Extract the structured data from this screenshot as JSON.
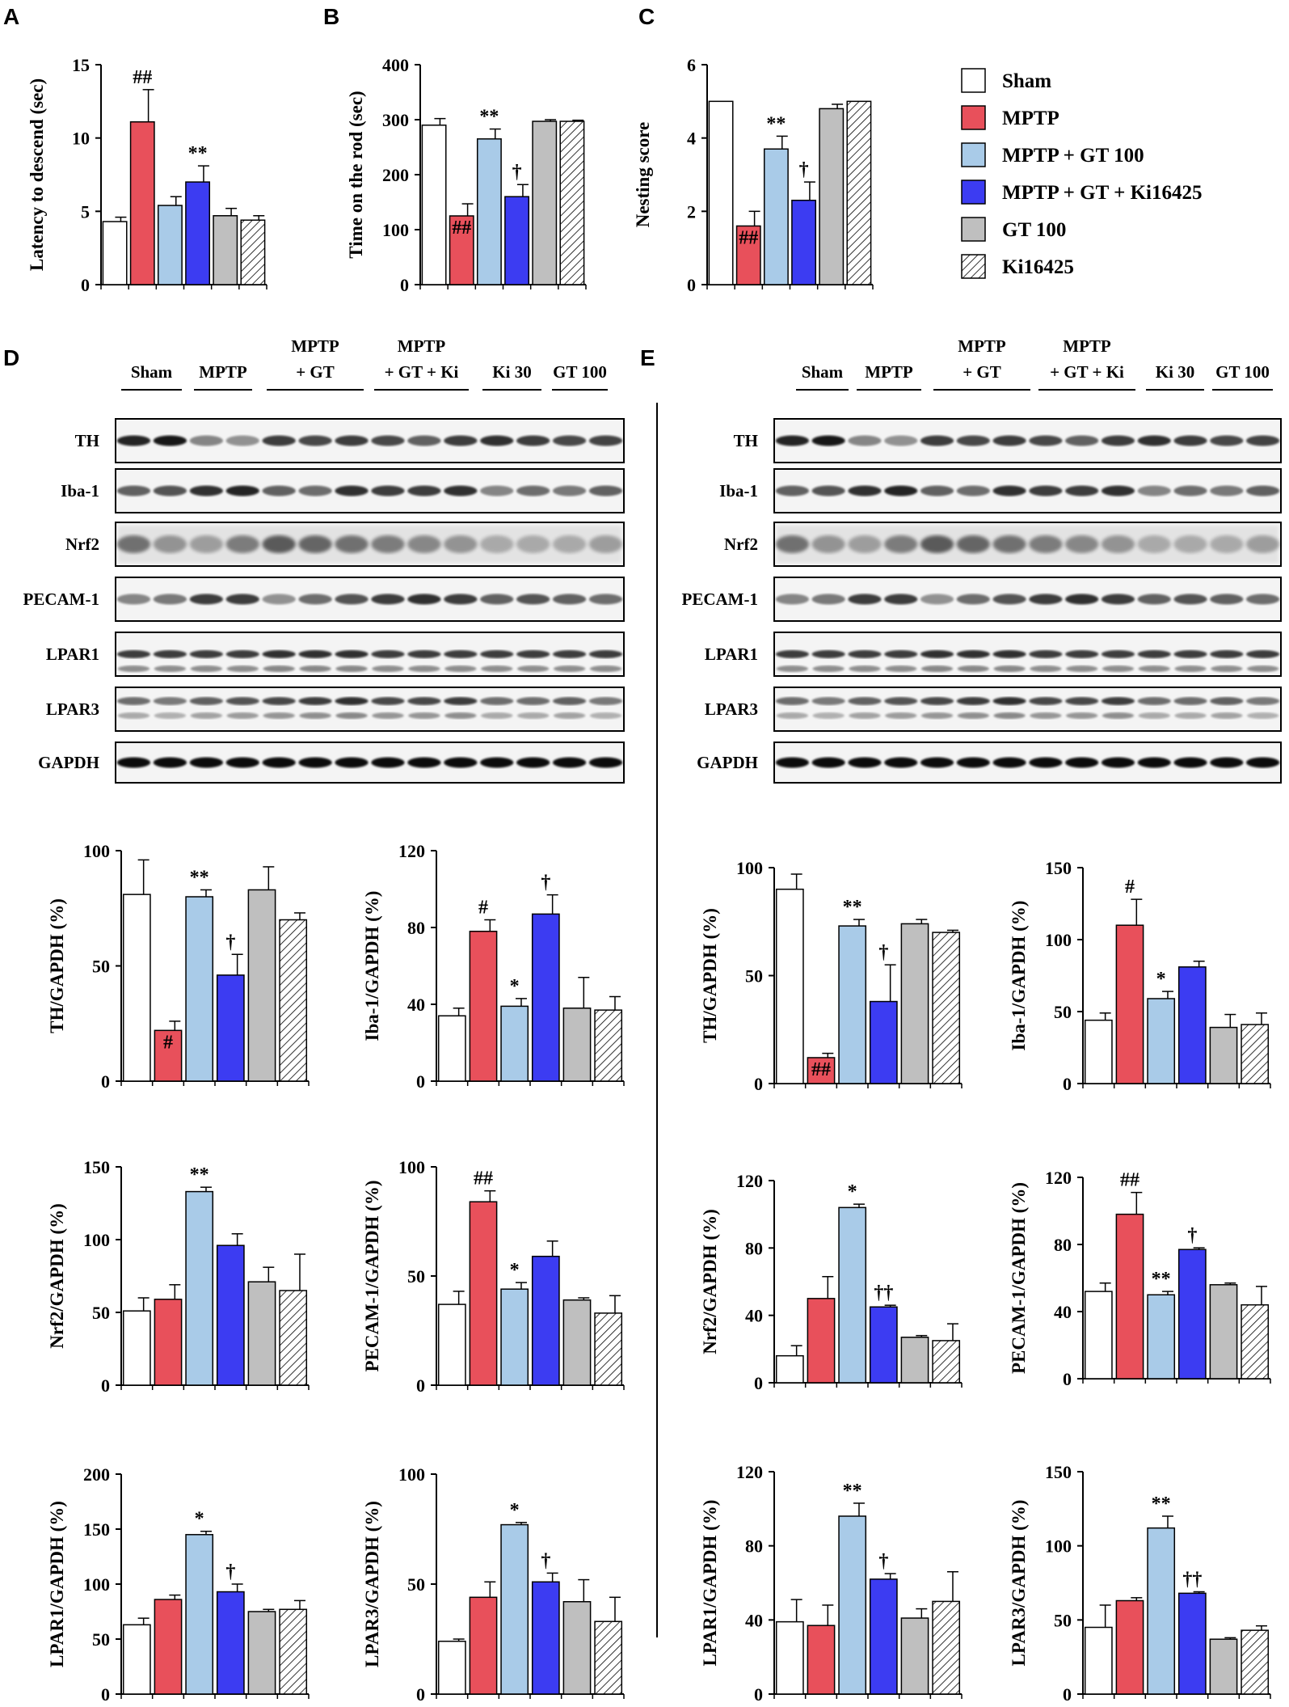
{
  "panel_labels": [
    "A",
    "B",
    "C",
    "D",
    "E"
  ],
  "colors": {
    "sham": "#ffffff",
    "mptp": "#e8505b",
    "mptp_gt100": "#a9cbe8",
    "mptp_gt_ki": "#3c3cf2",
    "gt100": "#bfbfbf",
    "ki16425": "hatched"
  },
  "legend": [
    {
      "label": "Sham",
      "color": "#ffffff",
      "hatch": false
    },
    {
      "label": "MPTP",
      "color": "#e8505b",
      "hatch": false
    },
    {
      "label": "MPTP + GT 100",
      "color": "#a9cbe8",
      "hatch": false
    },
    {
      "label": "MPTP + GT + Ki16425",
      "color": "#3c3cf2",
      "hatch": false
    },
    {
      "label": "GT 100",
      "color": "#bfbfbf",
      "hatch": false
    },
    {
      "label": "Ki16425",
      "color": "#ffffff",
      "hatch": true
    }
  ],
  "blots": {
    "D": {
      "groups": [
        {
          "l1": "Sham",
          "l2": ""
        },
        {
          "l1": "MPTP",
          "l2": ""
        },
        {
          "l1": "MPTP",
          "l2": "+ GT"
        },
        {
          "l1": "MPTP",
          "l2": "+ GT + Ki"
        },
        {
          "l1": "Ki 30",
          "l2": ""
        },
        {
          "l1": "GT 100",
          "l2": ""
        }
      ],
      "rows": [
        "TH",
        "Iba-1",
        "Nrf2",
        "PECAM-1",
        "LPAR1",
        "LPAR3",
        "GAPDH"
      ]
    },
    "E": {
      "groups": [
        {
          "l1": "Sham",
          "l2": ""
        },
        {
          "l1": "MPTP",
          "l2": ""
        },
        {
          "l1": "MPTP",
          "l2": "+ GT"
        },
        {
          "l1": "MPTP",
          "l2": "+ GT + Ki"
        },
        {
          "l1": "Ki 30",
          "l2": ""
        },
        {
          "l1": "GT 100",
          "l2": ""
        }
      ],
      "rows": [
        "TH",
        "Iba-1",
        "Nrf2",
        "PECAM-1",
        "LPAR1",
        "LPAR3",
        "GAPDH"
      ]
    }
  },
  "chart_data": [
    {
      "id": "A",
      "type": "bar",
      "ylabel": "Latency to descend (sec)",
      "ylim": [
        0,
        15
      ],
      "yticks": [
        0,
        5,
        10,
        15
      ],
      "categories": [
        "Sham",
        "MPTP",
        "MPTP + GT 100",
        "MPTP + GT + Ki16425",
        "GT 100",
        "Ki16425"
      ],
      "values": [
        4.3,
        11.1,
        5.4,
        7.0,
        4.7,
        4.4
      ],
      "errors": [
        0.3,
        2.2,
        0.6,
        1.1,
        0.5,
        0.3
      ],
      "annotations": [
        "",
        "##",
        "",
        "**",
        "",
        ""
      ]
    },
    {
      "id": "B",
      "type": "bar",
      "ylabel": "Time on the rod (sec)",
      "ylim": [
        0,
        400
      ],
      "yticks": [
        0,
        100,
        200,
        300,
        400
      ],
      "categories": [
        "Sham",
        "MPTP",
        "MPTP + GT 100",
        "MPTP + GT + Ki16425",
        "GT 100",
        "Ki16425"
      ],
      "values": [
        290,
        125,
        265,
        160,
        297,
        297
      ],
      "errors": [
        12,
        22,
        18,
        22,
        3,
        2
      ],
      "annotations": [
        "",
        "##",
        "**",
        "†",
        "",
        ""
      ]
    },
    {
      "id": "C",
      "type": "bar",
      "ylabel": "Nesting score",
      "ylim": [
        0,
        6
      ],
      "yticks": [
        0,
        2,
        4,
        6
      ],
      "categories": [
        "Sham",
        "MPTP",
        "MPTP + GT 100",
        "MPTP + GT + Ki16425",
        "GT 100",
        "Ki16425"
      ],
      "values": [
        5.0,
        1.6,
        3.7,
        2.3,
        4.8,
        5.0
      ],
      "errors": [
        0,
        0.4,
        0.35,
        0.5,
        0.12,
        0
      ],
      "annotations": [
        "",
        "##",
        "**",
        "†",
        "",
        ""
      ]
    },
    {
      "id": "D-TH",
      "type": "bar",
      "ylabel": "TH/GAPDH (%)",
      "ylim": [
        0,
        100
      ],
      "yticks": [
        0,
        50,
        100
      ],
      "categories": [
        "Sham",
        "MPTP",
        "MPTP + GT 100",
        "MPTP + GT + Ki16425",
        "GT 100",
        "Ki16425"
      ],
      "values": [
        81,
        22,
        80,
        46,
        83,
        70
      ],
      "errors": [
        15,
        4,
        3,
        9,
        10,
        3
      ],
      "annotations": [
        "",
        "#",
        "**",
        "†",
        "",
        ""
      ]
    },
    {
      "id": "D-Iba1",
      "type": "bar",
      "ylabel": "Iba-1/GAPDH (%)",
      "ylim": [
        0,
        120
      ],
      "yticks": [
        0,
        40,
        80,
        120
      ],
      "categories": [
        "Sham",
        "MPTP",
        "MPTP + GT 100",
        "MPTP + GT + Ki16425",
        "GT 100",
        "Ki16425"
      ],
      "values": [
        34,
        78,
        39,
        87,
        38,
        37
      ],
      "errors": [
        4,
        6,
        4,
        10,
        16,
        7
      ],
      "annotations": [
        "",
        "#",
        "*",
        "†",
        "",
        ""
      ]
    },
    {
      "id": "D-Nrf2",
      "type": "bar",
      "ylabel": "Nrf2/GAPDH (%)",
      "ylim": [
        0,
        150
      ],
      "yticks": [
        0,
        50,
        100,
        150
      ],
      "categories": [
        "Sham",
        "MPTP",
        "MPTP + GT 100",
        "MPTP + GT + Ki16425",
        "GT 100",
        "Ki16425"
      ],
      "values": [
        51,
        59,
        133,
        96,
        71,
        65
      ],
      "errors": [
        9,
        10,
        3,
        8,
        10,
        25
      ],
      "annotations": [
        "",
        "",
        "**",
        "",
        "",
        ""
      ]
    },
    {
      "id": "D-PECAM1",
      "type": "bar",
      "ylabel": "PECAM-1/GAPDH (%)",
      "ylim": [
        0,
        100
      ],
      "yticks": [
        0,
        50,
        100
      ],
      "categories": [
        "Sham",
        "MPTP",
        "MPTP + GT 100",
        "MPTP + GT + Ki16425",
        "GT 100",
        "Ki16425"
      ],
      "values": [
        37,
        84,
        44,
        59,
        39,
        33
      ],
      "errors": [
        6,
        5,
        3,
        7,
        1,
        8
      ],
      "annotations": [
        "",
        "##",
        "*",
        "",
        "",
        ""
      ]
    },
    {
      "id": "D-LPAR1",
      "type": "bar",
      "ylabel": "LPAR1/GAPDH (%)",
      "ylim": [
        0,
        200
      ],
      "yticks": [
        0,
        50,
        100,
        150,
        200
      ],
      "categories": [
        "Sham",
        "MPTP",
        "MPTP + GT 100",
        "MPTP + GT + Ki16425",
        "GT 100",
        "Ki16425"
      ],
      "values": [
        63,
        86,
        145,
        93,
        75,
        77
      ],
      "errors": [
        6,
        4,
        3,
        7,
        2,
        8
      ],
      "annotations": [
        "",
        "",
        "*",
        "†",
        "",
        ""
      ]
    },
    {
      "id": "D-LPAR3",
      "type": "bar",
      "ylabel": "LPAR3/GAPDH (%)",
      "ylim": [
        0,
        100
      ],
      "yticks": [
        0,
        50,
        100
      ],
      "categories": [
        "Sham",
        "MPTP",
        "MPTP + GT 100",
        "MPTP + GT + Ki16425",
        "GT 100",
        "Ki16425"
      ],
      "values": [
        24,
        44,
        77,
        51,
        42,
        33
      ],
      "errors": [
        1,
        7,
        1,
        4,
        10,
        11
      ],
      "annotations": [
        "",
        "",
        "*",
        "†",
        "",
        ""
      ]
    },
    {
      "id": "E-TH",
      "type": "bar",
      "ylabel": "TH/GAPDH (%)",
      "ylim": [
        0,
        100
      ],
      "yticks": [
        0,
        50,
        100
      ],
      "categories": [
        "Sham",
        "MPTP",
        "MPTP + GT 100",
        "MPTP + GT + Ki16425",
        "GT 100",
        "Ki16425"
      ],
      "values": [
        90,
        12,
        73,
        38,
        74,
        70
      ],
      "errors": [
        7,
        2,
        3,
        17,
        2,
        1
      ],
      "annotations": [
        "",
        "##",
        "**",
        "†",
        "",
        ""
      ]
    },
    {
      "id": "E-Iba1",
      "type": "bar",
      "ylabel": "Iba-1/GAPDH (%)",
      "ylim": [
        0,
        150
      ],
      "yticks": [
        0,
        50,
        100,
        150
      ],
      "categories": [
        "Sham",
        "MPTP",
        "MPTP + GT 100",
        "MPTP + GT + Ki16425",
        "GT 100",
        "Ki16425"
      ],
      "values": [
        44,
        110,
        59,
        81,
        39,
        41
      ],
      "errors": [
        5,
        18,
        5,
        4,
        9,
        8
      ],
      "annotations": [
        "",
        "#",
        "*",
        "",
        "",
        ""
      ]
    },
    {
      "id": "E-Nrf2",
      "type": "bar",
      "ylabel": "Nrf2/GAPDH (%)",
      "ylim": [
        0,
        120
      ],
      "yticks": [
        0,
        40,
        80,
        120
      ],
      "categories": [
        "Sham",
        "MPTP",
        "MPTP + GT 100",
        "MPTP + GT + Ki16425",
        "GT 100",
        "Ki16425"
      ],
      "values": [
        16,
        50,
        104,
        45,
        27,
        25
      ],
      "errors": [
        6,
        13,
        2,
        1,
        1,
        10
      ],
      "annotations": [
        "",
        "",
        "*",
        "††",
        "",
        ""
      ]
    },
    {
      "id": "E-PECAM1",
      "type": "bar",
      "ylabel": "PECAM-1/GAPDH (%)",
      "ylim": [
        0,
        120
      ],
      "yticks": [
        0,
        40,
        80,
        120
      ],
      "categories": [
        "Sham",
        "MPTP",
        "MPTP + GT 100",
        "MPTP + GT + Ki16425",
        "GT 100",
        "Ki16425"
      ],
      "values": [
        52,
        98,
        50,
        77,
        56,
        44
      ],
      "errors": [
        5,
        13,
        2,
        1,
        1,
        11
      ],
      "annotations": [
        "",
        "##",
        "**",
        "†",
        "",
        ""
      ]
    },
    {
      "id": "E-LPAR1",
      "type": "bar",
      "ylabel": "LPAR1/GAPDH (%)",
      "ylim": [
        0,
        120
      ],
      "yticks": [
        0,
        40,
        80,
        120
      ],
      "categories": [
        "Sham",
        "MPTP",
        "MPTP + GT 100",
        "MPTP + GT + Ki16425",
        "GT 100",
        "Ki16425"
      ],
      "values": [
        39,
        37,
        96,
        62,
        41,
        50
      ],
      "errors": [
        12,
        11,
        7,
        3,
        5,
        16
      ],
      "annotations": [
        "",
        "",
        "**",
        "†",
        "",
        ""
      ]
    },
    {
      "id": "E-LPAR3",
      "type": "bar",
      "ylabel": "LPAR3/GAPDH (%)",
      "ylim": [
        0,
        150
      ],
      "yticks": [
        0,
        50,
        100,
        150
      ],
      "categories": [
        "Sham",
        "MPTP",
        "MPTP + GT 100",
        "MPTP + GT + Ki16425",
        "GT 100",
        "Ki16425"
      ],
      "values": [
        45,
        63,
        112,
        68,
        37,
        43
      ],
      "errors": [
        15,
        2,
        8,
        1,
        1,
        3
      ],
      "annotations": [
        "",
        "",
        "**",
        "††",
        "",
        ""
      ]
    }
  ]
}
